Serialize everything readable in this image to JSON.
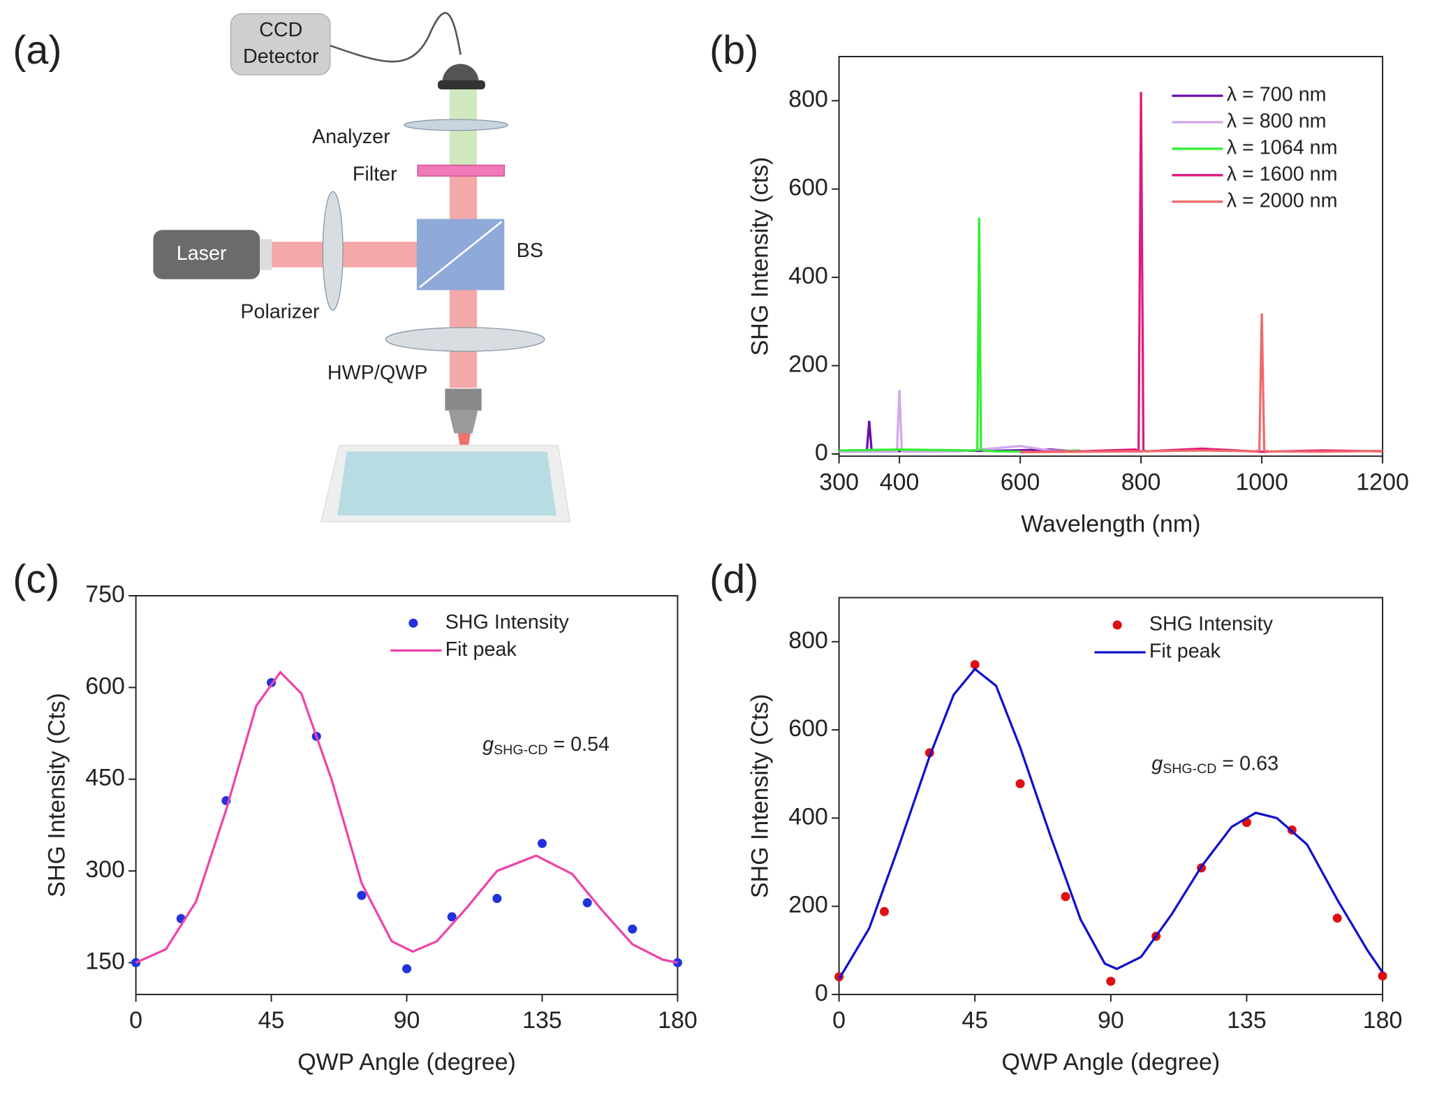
{
  "panels": [
    "(a)",
    "(b)",
    "(c)",
    "(d)"
  ],
  "diagram": {
    "ccd_detector": [
      "CCD",
      "Detector"
    ],
    "analyzer": "Analyzer",
    "filter": "Filter",
    "laser": "Laser",
    "bs": "BS",
    "polarizer": "Polarizer",
    "waveplate": "HWP/QWP"
  },
  "chart_data": [
    {
      "type": "line",
      "xlabel": "Wavelength (nm)",
      "ylabel": "SHG Intensity (cts)",
      "xlim": [
        300,
        1200
      ],
      "xticks": [
        300,
        400,
        600,
        800,
        1000,
        1200
      ],
      "ylim": [
        -5,
        900
      ],
      "yticks": [
        0,
        200,
        400,
        600,
        800
      ],
      "legend": "upper right",
      "series": [
        {
          "name": "λ = 700 nm",
          "type": "line",
          "color": "#6a0dad",
          "x": [
            300,
            340,
            346,
            350,
            354,
            360,
            450,
            550,
            650,
            700
          ],
          "values": [
            6,
            5,
            6,
            75,
            6,
            5,
            8,
            7,
            10,
            5
          ]
        },
        {
          "name": "λ = 800 nm",
          "type": "line",
          "color": "#d2a8ee",
          "x": [
            300,
            390,
            396,
            400,
            404,
            410,
            500,
            600,
            650,
            700,
            800
          ],
          "values": [
            5,
            5,
            6,
            145,
            6,
            5,
            6,
            18,
            8,
            6,
            5
          ]
        },
        {
          "name": "λ = 1064 nm",
          "type": "line",
          "color": "#33ee33",
          "x": [
            300,
            400,
            525,
            529,
            532,
            535,
            539,
            560,
            650,
            700
          ],
          "values": [
            8,
            10,
            8,
            10,
            535,
            10,
            8,
            6,
            5,
            8
          ]
        },
        {
          "name": "λ = 1600 nm",
          "type": "line",
          "color": "#e0197c",
          "x": [
            600,
            700,
            790,
            796,
            800,
            804,
            810,
            900,
            1000,
            1100,
            1200
          ],
          "values": [
            5,
            6,
            10,
            8,
            820,
            8,
            6,
            12,
            5,
            8,
            6
          ]
        },
        {
          "name": "λ = 2000 nm",
          "type": "line",
          "color": "#f06a6a",
          "x": [
            600,
            700,
            800,
            900,
            990,
            996,
            1000,
            1004,
            1010,
            1100,
            1200
          ],
          "values": [
            4,
            5,
            6,
            8,
            6,
            8,
            318,
            8,
            6,
            5,
            7
          ]
        }
      ]
    },
    {
      "type": "line",
      "xlabel": "QWP Angle (degree)",
      "ylabel": "SHG Intensity (Cts)",
      "xlim": [
        0,
        180
      ],
      "xticks": [
        0,
        45,
        90,
        135,
        180
      ],
      "ylim": [
        98,
        750
      ],
      "yticks": [
        150,
        300,
        450,
        600,
        750
      ],
      "legend": "upper center",
      "annotation": {
        "symbol": "g",
        "subscript": "SHG-CD",
        "text": " = 0.54"
      },
      "series": [
        {
          "name": "SHG Intensity",
          "type": "scatter",
          "color": "#2233dd",
          "x": [
            0,
            15,
            30,
            45,
            60,
            75,
            90,
            105,
            120,
            135,
            150,
            165,
            180
          ],
          "values": [
            150,
            222,
            415,
            608,
            520,
            260,
            140,
            225,
            255,
            345,
            248,
            205,
            150
          ]
        },
        {
          "name": "Fit peak",
          "type": "line",
          "color": "#ee44aa",
          "x": [
            0,
            10,
            20,
            30,
            40,
            48,
            55,
            65,
            75,
            85,
            92,
            100,
            110,
            120,
            133,
            145,
            155,
            165,
            175,
            180
          ],
          "values": [
            150,
            172,
            250,
            400,
            570,
            625,
            590,
            450,
            280,
            185,
            168,
            185,
            240,
            300,
            325,
            295,
            235,
            180,
            155,
            150
          ]
        }
      ]
    },
    {
      "type": "line",
      "xlabel": "QWP Angle (degree)",
      "ylabel": "SHG Intensity (Cts)",
      "xlim": [
        0,
        180
      ],
      "xticks": [
        0,
        45,
        90,
        135,
        180
      ],
      "ylim": [
        0,
        900
      ],
      "yticks": [
        0,
        200,
        400,
        600,
        800
      ],
      "legend": "upper center",
      "annotation": {
        "symbol": "g",
        "subscript": "SHG-CD",
        "text": " = 0.63"
      },
      "series": [
        {
          "name": "SHG Intensity",
          "type": "scatter",
          "color": "#dd1111",
          "x": [
            0,
            15,
            30,
            45,
            60,
            75,
            90,
            105,
            120,
            135,
            150,
            165,
            180
          ],
          "values": [
            40,
            188,
            548,
            748,
            478,
            222,
            30,
            132,
            287,
            390,
            373,
            173,
            42
          ]
        },
        {
          "name": "Fit peak",
          "type": "line",
          "color": "#1111cc",
          "x": [
            0,
            10,
            20,
            30,
            38,
            45,
            52,
            60,
            70,
            80,
            88,
            92,
            100,
            110,
            120,
            130,
            138,
            145,
            155,
            165,
            175,
            180
          ],
          "values": [
            35,
            150,
            340,
            540,
            680,
            738,
            700,
            560,
            360,
            170,
            70,
            58,
            85,
            180,
            290,
            380,
            412,
            400,
            340,
            215,
            100,
            50
          ]
        }
      ]
    }
  ]
}
